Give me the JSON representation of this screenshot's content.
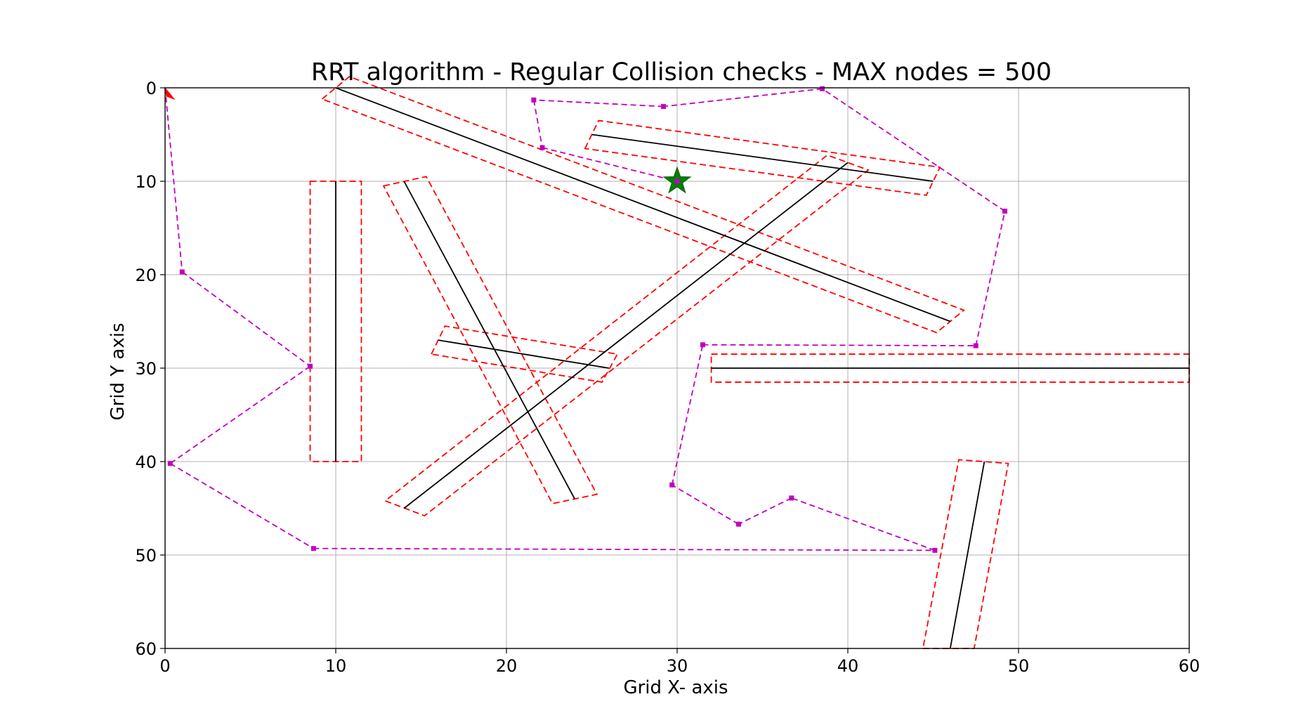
{
  "chart_data": {
    "type": "line",
    "title": "RRT algorithm - Regular Collision checks  - MAX nodes = 500",
    "xlabel": "Grid X- axis",
    "ylabel": "Grid Y axis",
    "xlim": [
      0,
      60
    ],
    "ylim": [
      0,
      60
    ],
    "y_inverted": true,
    "grid": true,
    "x_ticks": [
      "0",
      "10",
      "20",
      "30",
      "40",
      "50",
      "60"
    ],
    "y_ticks": [
      "0",
      "10",
      "20",
      "30",
      "40",
      "50",
      "60"
    ],
    "colors": {
      "obstacle": "#000000",
      "safety_margin": "#ff0000",
      "path": "#c000c0",
      "goal": "#008000",
      "start": "#ff0000"
    },
    "start": [
      0,
      0
    ],
    "goal": [
      30,
      10
    ],
    "obstacles": [
      {
        "p1": [
          10,
          0
        ],
        "p2": [
          46,
          25
        ]
      },
      {
        "p1": [
          25,
          5
        ],
        "p2": [
          45,
          10
        ]
      },
      {
        "p1": [
          10,
          10
        ],
        "p2": [
          10,
          40
        ]
      },
      {
        "p1": [
          14,
          10
        ],
        "p2": [
          24,
          44
        ]
      },
      {
        "p1": [
          16,
          27
        ],
        "p2": [
          26,
          30
        ]
      },
      {
        "p1": [
          14,
          45
        ],
        "p2": [
          40,
          8
        ]
      },
      {
        "p1": [
          32,
          30
        ],
        "p2": [
          60,
          30
        ]
      },
      {
        "p1": [
          46,
          60
        ],
        "p2": [
          48,
          40
        ]
      }
    ],
    "margins": [
      [
        [
          9.2,
          1.2
        ],
        [
          10.8,
          -1.2
        ],
        [
          46.8,
          23.8
        ],
        [
          45.2,
          26.2
        ]
      ],
      [
        [
          24.6,
          6.5
        ],
        [
          25.4,
          3.5
        ],
        [
          45.4,
          8.5
        ],
        [
          44.6,
          11.5
        ]
      ],
      [
        [
          8.5,
          10
        ],
        [
          11.5,
          10
        ],
        [
          11.5,
          40
        ],
        [
          8.5,
          40
        ]
      ],
      [
        [
          12.8,
          10.5
        ],
        [
          15.3,
          9.5
        ],
        [
          25.3,
          43.5
        ],
        [
          22.7,
          44.5
        ]
      ],
      [
        [
          15.6,
          28.5
        ],
        [
          16.4,
          25.5
        ],
        [
          26.5,
          28.5
        ],
        [
          25.6,
          31.5
        ]
      ],
      [
        [
          12.9,
          44.2
        ],
        [
          15.2,
          45.8
        ],
        [
          41.2,
          8.8
        ],
        [
          38.8,
          7.2
        ]
      ],
      [
        [
          32,
          28.5
        ],
        [
          60,
          28.5
        ],
        [
          60,
          31.5
        ],
        [
          32,
          31.5
        ]
      ],
      [
        [
          44.4,
          60
        ],
        [
          47.4,
          60
        ],
        [
          49.4,
          40.2
        ],
        [
          46.5,
          39.8
        ]
      ]
    ],
    "path_segments": [
      [
        [
          0,
          0
        ],
        [
          1,
          19.7
        ]
      ],
      [
        [
          1,
          19.7
        ],
        [
          8.5,
          29.8
        ]
      ],
      [
        [
          8.5,
          29.8
        ],
        [
          0.3,
          40.2
        ]
      ],
      [
        [
          0.3,
          40.2
        ],
        [
          8.7,
          49.3
        ]
      ],
      [
        [
          8.7,
          49.3
        ],
        [
          45.1,
          49.5
        ]
      ],
      [
        [
          45.1,
          49.5
        ],
        [
          36.7,
          43.9
        ]
      ],
      [
        [
          36.7,
          43.9
        ],
        [
          33.6,
          46.7
        ]
      ],
      [
        [
          33.6,
          46.7
        ],
        [
          29.7,
          42.5
        ]
      ],
      [
        [
          29.7,
          42.5
        ],
        [
          31.5,
          27.5
        ]
      ],
      [
        [
          31.5,
          27.5
        ],
        [
          47.5,
          27.6
        ]
      ],
      [
        [
          47.5,
          27.6
        ],
        [
          49.2,
          13.2
        ]
      ],
      [
        [
          49.2,
          13.2
        ],
        [
          38.5,
          0.1
        ]
      ],
      [
        [
          38.5,
          0.1
        ],
        [
          29.2,
          2
        ]
      ],
      [
        [
          29.2,
          2
        ],
        [
          21.6,
          1.3
        ]
      ],
      [
        [
          21.6,
          1.3
        ],
        [
          22.1,
          6.4
        ]
      ],
      [
        [
          22.1,
          6.4
        ],
        [
          30,
          10
        ]
      ]
    ],
    "path_nodes": [
      [
        1,
        19.7
      ],
      [
        8.5,
        29.8
      ],
      [
        0.3,
        40.2
      ],
      [
        8.7,
        49.3
      ],
      [
        45.1,
        49.5
      ],
      [
        36.7,
        43.9
      ],
      [
        33.6,
        46.7
      ],
      [
        29.7,
        42.5
      ],
      [
        31.5,
        27.5
      ],
      [
        47.5,
        27.6
      ],
      [
        49.2,
        13.2
      ],
      [
        38.5,
        0.1
      ],
      [
        29.2,
        2
      ],
      [
        21.6,
        1.3
      ],
      [
        22.1,
        6.4
      ],
      [
        30,
        10
      ]
    ]
  }
}
